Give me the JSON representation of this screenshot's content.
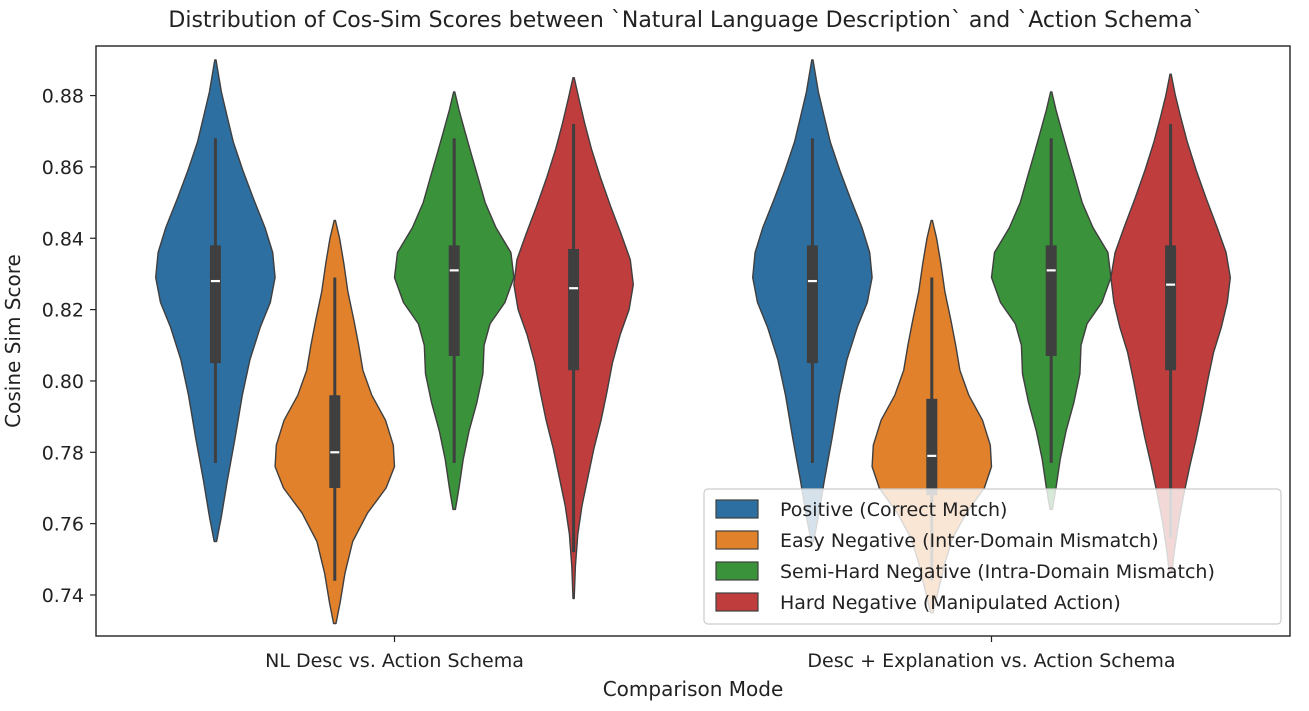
{
  "chart_data": {
    "type": "violin",
    "title": "Distribution of Cos-Sim Scores between `Natural Language Description` and `Action Schema`",
    "xlabel": "Comparison Mode",
    "ylabel": "Cosine Sim Score",
    "ylim": [
      0.7285,
      0.8939
    ],
    "yticks": [
      "0.74",
      "0.76",
      "0.78",
      "0.80",
      "0.82",
      "0.84",
      "0.86",
      "0.88"
    ],
    "categories": [
      "NL Desc vs. Action Schema",
      "Desc + Explanation vs. Action Schema"
    ],
    "legend_position": "lower-right",
    "grid": false,
    "series": [
      {
        "name": "Positive (Correct Match)",
        "color": "#2e6fa2",
        "groups": [
          {
            "min": 0.755,
            "max": 0.89,
            "q1": 0.805,
            "median": 0.828,
            "q3": 0.838,
            "whisker_low": 0.777,
            "whisker_high": 0.868,
            "profile": [
              [
                0.755,
                0.02
              ],
              [
                0.762,
                0.1
              ],
              [
                0.772,
                0.2
              ],
              [
                0.784,
                0.33
              ],
              [
                0.796,
                0.45
              ],
              [
                0.806,
                0.58
              ],
              [
                0.815,
                0.75
              ],
              [
                0.822,
                0.92
              ],
              [
                0.829,
                1.0
              ],
              [
                0.836,
                0.96
              ],
              [
                0.843,
                0.83
              ],
              [
                0.851,
                0.64
              ],
              [
                0.859,
                0.46
              ],
              [
                0.867,
                0.3
              ],
              [
                0.874,
                0.2
              ],
              [
                0.881,
                0.1
              ],
              [
                0.886,
                0.05
              ],
              [
                0.89,
                0.01
              ]
            ]
          },
          {
            "min": 0.755,
            "max": 0.89,
            "q1": 0.805,
            "median": 0.828,
            "q3": 0.838,
            "whisker_low": 0.777,
            "whisker_high": 0.868,
            "profile": [
              [
                0.755,
                0.02
              ],
              [
                0.762,
                0.1
              ],
              [
                0.772,
                0.2
              ],
              [
                0.784,
                0.33
              ],
              [
                0.796,
                0.45
              ],
              [
                0.806,
                0.58
              ],
              [
                0.815,
                0.75
              ],
              [
                0.822,
                0.92
              ],
              [
                0.829,
                1.0
              ],
              [
                0.836,
                0.96
              ],
              [
                0.843,
                0.83
              ],
              [
                0.851,
                0.64
              ],
              [
                0.859,
                0.46
              ],
              [
                0.867,
                0.3
              ],
              [
                0.874,
                0.2
              ],
              [
                0.881,
                0.1
              ],
              [
                0.886,
                0.05
              ],
              [
                0.89,
                0.01
              ]
            ]
          }
        ]
      },
      {
        "name": "Easy Negative (Inter-Domain Mismatch)",
        "color": "#e1812c",
        "groups": [
          {
            "min": 0.732,
            "max": 0.845,
            "q1": 0.77,
            "median": 0.78,
            "q3": 0.796,
            "whisker_low": 0.744,
            "whisker_high": 0.829,
            "profile": [
              [
                0.732,
                0.02
              ],
              [
                0.738,
                0.09
              ],
              [
                0.746,
                0.17
              ],
              [
                0.755,
                0.3
              ],
              [
                0.763,
                0.55
              ],
              [
                0.77,
                0.86
              ],
              [
                0.776,
                1.0
              ],
              [
                0.782,
                0.98
              ],
              [
                0.789,
                0.85
              ],
              [
                0.796,
                0.62
              ],
              [
                0.803,
                0.47
              ],
              [
                0.81,
                0.4
              ],
              [
                0.817,
                0.32
              ],
              [
                0.825,
                0.22
              ],
              [
                0.833,
                0.15
              ],
              [
                0.84,
                0.08
              ],
              [
                0.845,
                0.01
              ]
            ]
          },
          {
            "min": 0.735,
            "max": 0.845,
            "q1": 0.768,
            "median": 0.779,
            "q3": 0.795,
            "whisker_low": 0.744,
            "whisker_high": 0.829,
            "profile": [
              [
                0.735,
                0.02
              ],
              [
                0.742,
                0.12
              ],
              [
                0.749,
                0.22
              ],
              [
                0.756,
                0.35
              ],
              [
                0.763,
                0.58
              ],
              [
                0.77,
                0.88
              ],
              [
                0.776,
                1.0
              ],
              [
                0.782,
                0.98
              ],
              [
                0.789,
                0.85
              ],
              [
                0.796,
                0.62
              ],
              [
                0.803,
                0.47
              ],
              [
                0.81,
                0.4
              ],
              [
                0.817,
                0.32
              ],
              [
                0.825,
                0.22
              ],
              [
                0.833,
                0.15
              ],
              [
                0.84,
                0.08
              ],
              [
                0.845,
                0.01
              ]
            ]
          }
        ]
      },
      {
        "name": "Semi-Hard Negative (Intra-Domain Mismatch)",
        "color": "#3a923a",
        "groups": [
          {
            "min": 0.764,
            "max": 0.881,
            "q1": 0.807,
            "median": 0.831,
            "q3": 0.838,
            "whisker_low": 0.777,
            "whisker_high": 0.868,
            "profile": [
              [
                0.764,
                0.02
              ],
              [
                0.77,
                0.08
              ],
              [
                0.778,
                0.15
              ],
              [
                0.786,
                0.25
              ],
              [
                0.794,
                0.38
              ],
              [
                0.802,
                0.48
              ],
              [
                0.81,
                0.5
              ],
              [
                0.816,
                0.6
              ],
              [
                0.822,
                0.85
              ],
              [
                0.829,
                1.0
              ],
              [
                0.836,
                0.95
              ],
              [
                0.843,
                0.7
              ],
              [
                0.85,
                0.52
              ],
              [
                0.857,
                0.4
              ],
              [
                0.864,
                0.28
              ],
              [
                0.87,
                0.18
              ],
              [
                0.876,
                0.08
              ],
              [
                0.881,
                0.01
              ]
            ]
          },
          {
            "min": 0.764,
            "max": 0.881,
            "q1": 0.807,
            "median": 0.831,
            "q3": 0.838,
            "whisker_low": 0.777,
            "whisker_high": 0.868,
            "profile": [
              [
                0.764,
                0.02
              ],
              [
                0.77,
                0.08
              ],
              [
                0.778,
                0.15
              ],
              [
                0.786,
                0.25
              ],
              [
                0.794,
                0.38
              ],
              [
                0.802,
                0.48
              ],
              [
                0.81,
                0.5
              ],
              [
                0.816,
                0.6
              ],
              [
                0.822,
                0.85
              ],
              [
                0.829,
                1.0
              ],
              [
                0.836,
                0.95
              ],
              [
                0.843,
                0.7
              ],
              [
                0.85,
                0.52
              ],
              [
                0.857,
                0.4
              ],
              [
                0.864,
                0.28
              ],
              [
                0.87,
                0.18
              ],
              [
                0.876,
                0.08
              ],
              [
                0.881,
                0.01
              ]
            ]
          }
        ]
      },
      {
        "name": "Hard Negative (Manipulated Action)",
        "color": "#c03d3e",
        "groups": [
          {
            "min": 0.739,
            "max": 0.885,
            "q1": 0.803,
            "median": 0.826,
            "q3": 0.837,
            "whisker_low": 0.752,
            "whisker_high": 0.872,
            "profile": [
              [
                0.739,
                0.01
              ],
              [
                0.748,
                0.03
              ],
              [
                0.757,
                0.07
              ],
              [
                0.765,
                0.14
              ],
              [
                0.773,
                0.24
              ],
              [
                0.781,
                0.34
              ],
              [
                0.789,
                0.46
              ],
              [
                0.797,
                0.56
              ],
              [
                0.805,
                0.65
              ],
              [
                0.813,
                0.78
              ],
              [
                0.82,
                0.93
              ],
              [
                0.827,
                1.0
              ],
              [
                0.834,
                0.95
              ],
              [
                0.841,
                0.8
              ],
              [
                0.849,
                0.62
              ],
              [
                0.857,
                0.45
              ],
              [
                0.865,
                0.3
              ],
              [
                0.872,
                0.19
              ],
              [
                0.879,
                0.09
              ],
              [
                0.885,
                0.01
              ]
            ]
          },
          {
            "min": 0.746,
            "max": 0.886,
            "q1": 0.803,
            "median": 0.827,
            "q3": 0.838,
            "whisker_low": 0.756,
            "whisker_high": 0.872,
            "profile": [
              [
                0.746,
                0.02
              ],
              [
                0.752,
                0.06
              ],
              [
                0.76,
                0.13
              ],
              [
                0.768,
                0.22
              ],
              [
                0.776,
                0.32
              ],
              [
                0.784,
                0.43
              ],
              [
                0.792,
                0.53
              ],
              [
                0.8,
                0.62
              ],
              [
                0.808,
                0.72
              ],
              [
                0.815,
                0.85
              ],
              [
                0.822,
                0.95
              ],
              [
                0.829,
                1.0
              ],
              [
                0.836,
                0.93
              ],
              [
                0.843,
                0.78
              ],
              [
                0.851,
                0.6
              ],
              [
                0.859,
                0.43
              ],
              [
                0.867,
                0.28
              ],
              [
                0.874,
                0.17
              ],
              [
                0.88,
                0.08
              ],
              [
                0.886,
                0.01
              ]
            ]
          }
        ]
      }
    ]
  }
}
